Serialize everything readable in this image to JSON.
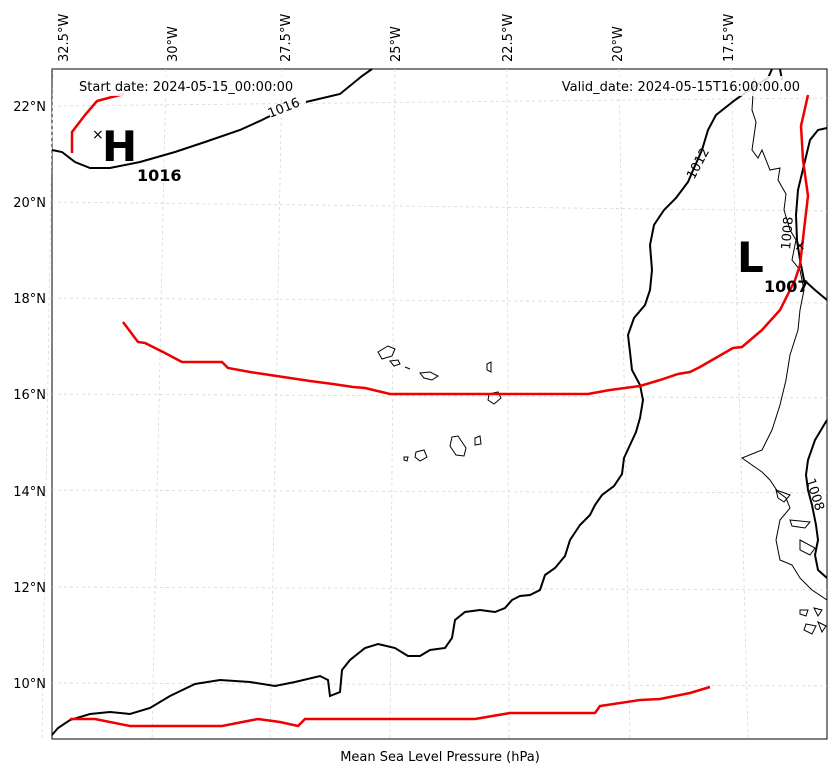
{
  "header": {
    "start_date": "Start date: 2024-05-15_00:00:00",
    "valid_date": "Valid_date: 2024-05-15T16:00:00.00"
  },
  "caption": "Mean Sea Level Pressure (hPa)",
  "lon_ticks": [
    "32.5°W",
    "30°W",
    "27.5°W",
    "25°W",
    "22.5°W",
    "20°W",
    "17.5°W"
  ],
  "lat_ticks": [
    "22°N",
    "20°N",
    "18°N",
    "16°N",
    "14°N",
    "12°N",
    "10°N"
  ],
  "contour_labels": {
    "c1016": "1016",
    "c1012": "1012",
    "c1008a": "1008",
    "c1008b": "1008"
  },
  "centers": {
    "high": {
      "letter": "H",
      "value": "1016"
    },
    "low": {
      "letter": "L",
      "value": "1007"
    }
  },
  "colors": {
    "isobar": "#000000",
    "highlight_line": "#ee0000",
    "grid": "#d0d0d0",
    "coast": "#000000"
  }
}
